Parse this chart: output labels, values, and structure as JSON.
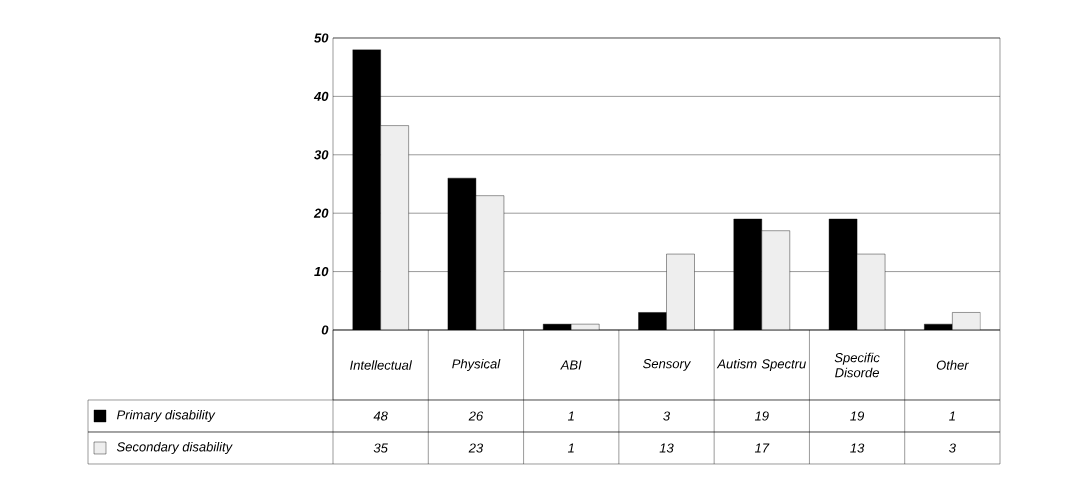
{
  "chart_data": {
    "type": "bar",
    "categories": [
      "Intellectual",
      "Physical",
      "ABI",
      "Sensory",
      "Autism Spectru",
      "Specific Disorde",
      "Other"
    ],
    "series": [
      {
        "name": "Primary disability",
        "color": "#000000",
        "values": [
          48,
          26,
          1,
          3,
          19,
          19,
          1
        ]
      },
      {
        "name": "Secondary disability",
        "color": "#eeeeee",
        "values": [
          35,
          23,
          1,
          13,
          17,
          13,
          3
        ]
      }
    ],
    "ylim": [
      0,
      50
    ],
    "yticks": [
      0,
      10,
      20,
      30,
      40,
      50
    ],
    "grid": "y",
    "data_labels": true,
    "legend": "bottom left"
  }
}
